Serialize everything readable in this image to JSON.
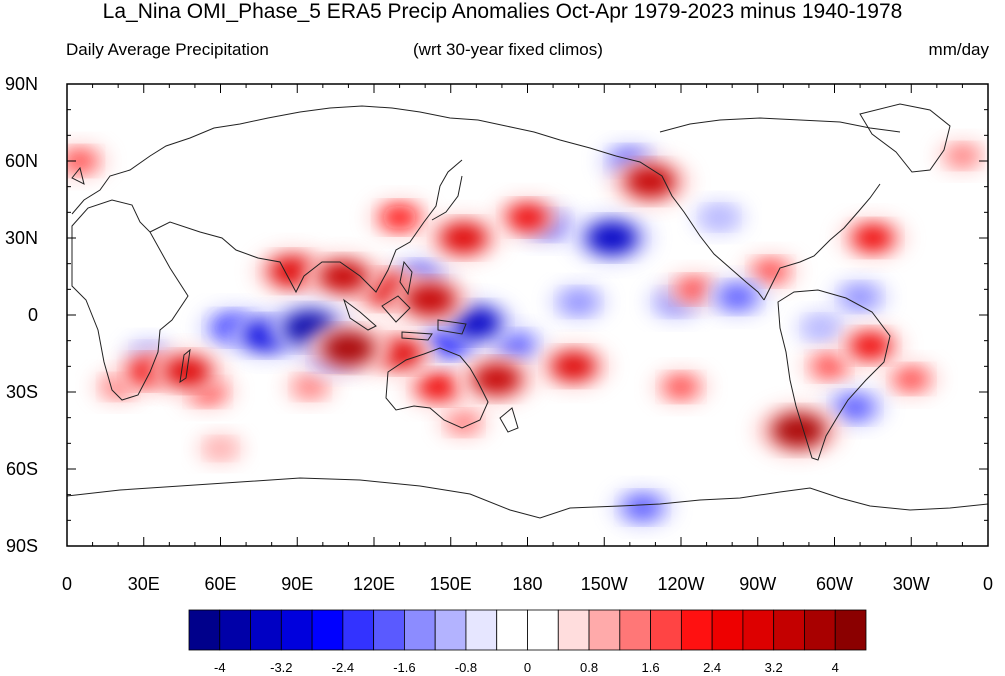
{
  "header": {
    "title": "La_Nina OMI_Phase_5 ERA5 Precip Anomalies Oct-Apr 1979-2023 minus 1940-1978",
    "left": "Daily Average Precipitation",
    "center": "(wrt 30-year fixed climos)",
    "right": "mm/day"
  },
  "axes": {
    "lat_ticks": [
      "90N",
      "60N",
      "30N",
      "0",
      "30S",
      "60S",
      "90S"
    ],
    "lon_ticks": [
      "0",
      "30E",
      "60E",
      "90E",
      "120E",
      "150E",
      "180",
      "150W",
      "120W",
      "90W",
      "60W",
      "30W",
      "0"
    ]
  },
  "colorbar": {
    "labels": [
      "-4",
      "-3.2",
      "-2.4",
      "-1.6",
      "-0.8",
      "0",
      "0.8",
      "1.6",
      "2.4",
      "3.2",
      "4"
    ],
    "colors": [
      "#00008b",
      "#0000a8",
      "#0000c4",
      "#0000dd",
      "#0000ff",
      "#3333ff",
      "#5a5aff",
      "#8c8cff",
      "#b3b3ff",
      "#e6e6ff",
      "#ffffff",
      "#ffffff",
      "#ffdddd",
      "#ffaaaa",
      "#ff7777",
      "#ff4444",
      "#ff1111",
      "#ee0000",
      "#dd0000",
      "#c40000",
      "#a80000",
      "#8b0000"
    ]
  },
  "anomalies": [
    {
      "lon": 95,
      "lat": -5,
      "value": -3.6
    },
    {
      "lon": 78,
      "lat": -8,
      "value": -3.0
    },
    {
      "lon": 65,
      "lat": -5,
      "value": -2.4
    },
    {
      "lon": 105,
      "lat": -15,
      "value": -2.2
    },
    {
      "lon": 160,
      "lat": -3,
      "value": -3.2
    },
    {
      "lon": 150,
      "lat": -10,
      "value": -2.6
    },
    {
      "lon": 175,
      "lat": -12,
      "value": -2.0
    },
    {
      "lon": 213,
      "lat": 30,
      "value": -3.4
    },
    {
      "lon": 188,
      "lat": 35,
      "value": -1.8
    },
    {
      "lon": 138,
      "lat": 15,
      "value": -2.0
    },
    {
      "lon": 200,
      "lat": 5,
      "value": -1.6
    },
    {
      "lon": 238,
      "lat": 5,
      "value": -1.6
    },
    {
      "lon": 262,
      "lat": 7,
      "value": -2.0
    },
    {
      "lon": 310,
      "lat": 7,
      "value": -1.6
    },
    {
      "lon": 295,
      "lat": -5,
      "value": -1.2
    },
    {
      "lon": 308,
      "lat": -36,
      "value": -2.0
    },
    {
      "lon": 220,
      "lat": 60,
      "value": -1.8
    },
    {
      "lon": 255,
      "lat": 38,
      "value": -1.2
    },
    {
      "lon": 225,
      "lat": -75,
      "value": -2.0
    },
    {
      "lon": 32,
      "lat": -15,
      "value": -1.0
    },
    {
      "lon": 108,
      "lat": 15,
      "value": 3.2
    },
    {
      "lon": 88,
      "lat": 17,
      "value": 3.0
    },
    {
      "lon": 125,
      "lat": 10,
      "value": 3.0
    },
    {
      "lon": 142,
      "lat": 6,
      "value": 3.4
    },
    {
      "lon": 110,
      "lat": -13,
      "value": 3.6
    },
    {
      "lon": 130,
      "lat": -15,
      "value": 2.8
    },
    {
      "lon": 155,
      "lat": 30,
      "value": 3.0
    },
    {
      "lon": 180,
      "lat": 38,
      "value": 2.4
    },
    {
      "lon": 228,
      "lat": 52,
      "value": 3.4
    },
    {
      "lon": 168,
      "lat": -25,
      "value": 3.2
    },
    {
      "lon": 145,
      "lat": -28,
      "value": 2.4
    },
    {
      "lon": 198,
      "lat": -20,
      "value": 2.8
    },
    {
      "lon": 47,
      "lat": -22,
      "value": 3.0
    },
    {
      "lon": 32,
      "lat": -22,
      "value": 2.4
    },
    {
      "lon": 55,
      "lat": -30,
      "value": 1.6
    },
    {
      "lon": 286,
      "lat": -45,
      "value": 3.8
    },
    {
      "lon": 314,
      "lat": -12,
      "value": 2.4
    },
    {
      "lon": 298,
      "lat": -20,
      "value": 1.6
    },
    {
      "lon": 330,
      "lat": -25,
      "value": 1.6
    },
    {
      "lon": 315,
      "lat": 30,
      "value": 2.4
    },
    {
      "lon": 275,
      "lat": 17,
      "value": 1.6
    },
    {
      "lon": 245,
      "lat": 10,
      "value": 1.6
    },
    {
      "lon": 5,
      "lat": 60,
      "value": 1.6
    },
    {
      "lon": 130,
      "lat": 38,
      "value": 2.0
    },
    {
      "lon": 240,
      "lat": -28,
      "value": 1.6
    },
    {
      "lon": 95,
      "lat": -28,
      "value": 1.2
    },
    {
      "lon": 20,
      "lat": -28,
      "value": 1.2
    },
    {
      "lon": 350,
      "lat": 62,
      "value": 1.2
    },
    {
      "lon": 155,
      "lat": -42,
      "value": 1.2
    },
    {
      "lon": 60,
      "lat": -52,
      "value": 0.9
    }
  ],
  "icons": {
    "coastline": "coastline-icon"
  }
}
